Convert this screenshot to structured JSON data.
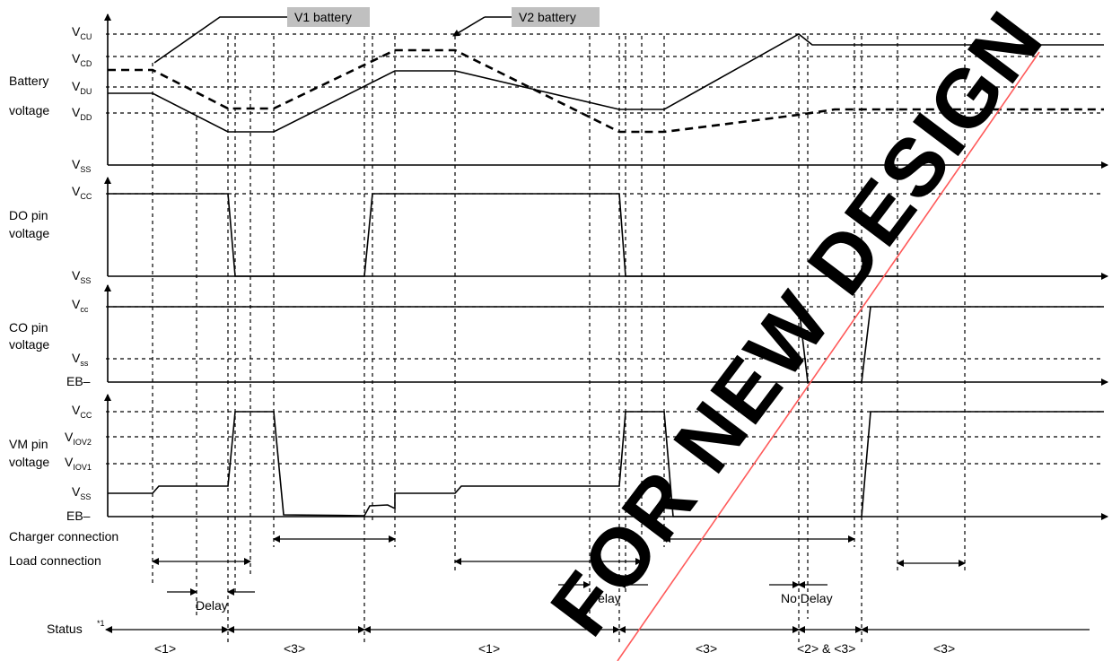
{
  "battery_section": {
    "label_line1": "Battery",
    "label_line2": "voltage",
    "levels": [
      {
        "main": "V",
        "sub": "CU"
      },
      {
        "main": "V",
        "sub": "CD"
      },
      {
        "main": "V",
        "sub": "DU"
      },
      {
        "main": "V",
        "sub": "DD"
      },
      {
        "main": "V",
        "sub": "SS"
      }
    ],
    "callouts": {
      "v1": "V1 battery",
      "v2": "V2 battery"
    }
  },
  "do_section": {
    "label_line1": "DO pin",
    "label_line2": "voltage",
    "levels": [
      {
        "main": "V",
        "sub": "CC"
      },
      {
        "main": "V",
        "sub": "SS"
      }
    ]
  },
  "co_section": {
    "label_line1": "CO pin",
    "label_line2": "voltage",
    "levels": [
      {
        "main": "V",
        "sub": "cc"
      },
      {
        "main": "V",
        "sub": "ss"
      },
      {
        "main": "EB–",
        "sub": ""
      }
    ]
  },
  "vm_section": {
    "label_line1": "VM pin",
    "label_line2": "voltage",
    "levels": [
      {
        "main": "V",
        "sub": "CC"
      },
      {
        "main": "V",
        "sub": "IOV2"
      },
      {
        "main": "V",
        "sub": "IOV1"
      },
      {
        "main": "V",
        "sub": "SS"
      },
      {
        "main": "EB–",
        "sub": ""
      }
    ]
  },
  "rows": {
    "charger": "Charger connection",
    "load": "Load connection",
    "delay1": "Delay",
    "delay2": "Delay",
    "nodelay": "No Delay",
    "status": "Status",
    "status_note": "*1"
  },
  "status_values": [
    "<1>",
    "<3>",
    "<1>",
    "<3>",
    "<2> & <3>",
    "<3>"
  ],
  "watermark": "FOR NEW DESIGN",
  "colors": {
    "callout_bg": "#c0c0c0",
    "watermark": "#ff2a2a"
  }
}
